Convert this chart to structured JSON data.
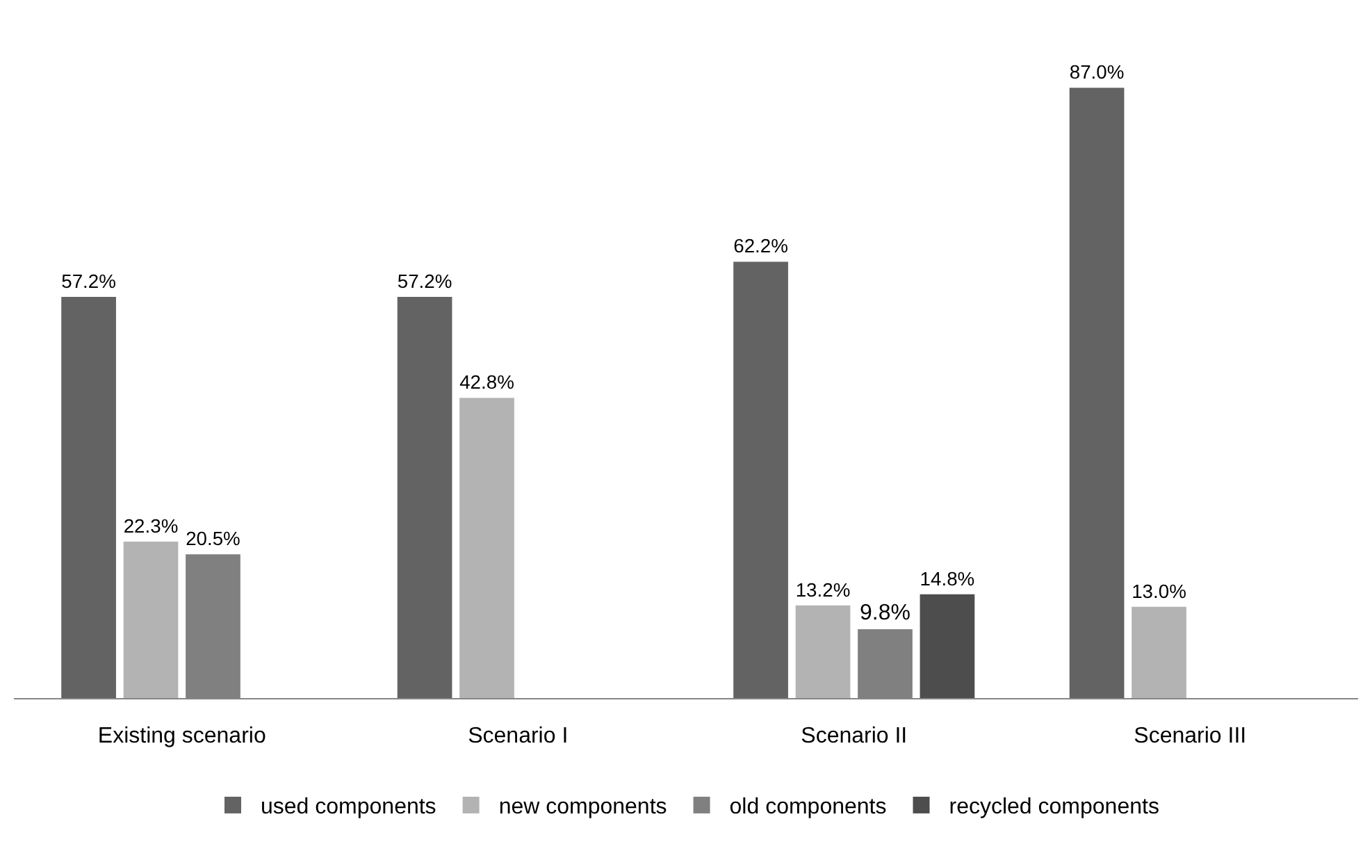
{
  "chart_data": {
    "type": "bar",
    "categories": [
      "Existing scenario",
      "Scenario I",
      "Scenario II",
      "Scenario III"
    ],
    "series": [
      {
        "name": "used components",
        "color": "#636363",
        "values": [
          57.2,
          57.2,
          62.2,
          87.0
        ],
        "value_labels": [
          "57.2%",
          "57.2%",
          "62.2%",
          "87.0%"
        ]
      },
      {
        "name": "new components",
        "color": "#b3b3b3",
        "values": [
          22.3,
          42.8,
          13.2,
          13.0
        ],
        "value_labels": [
          "22.3%",
          "42.8%",
          "13.2%",
          "13.0%"
        ]
      },
      {
        "name": "old components",
        "color": "#808080",
        "values": [
          20.5,
          null,
          9.8,
          null
        ],
        "value_labels": [
          "20.5%",
          null,
          "9.8%",
          null
        ]
      },
      {
        "name": "recycled components",
        "color": "#4d4d4d",
        "values": [
          null,
          null,
          14.8,
          null
        ],
        "value_labels": [
          null,
          null,
          "14.8%",
          null
        ]
      }
    ],
    "legend": "bottom",
    "grid": false
  }
}
